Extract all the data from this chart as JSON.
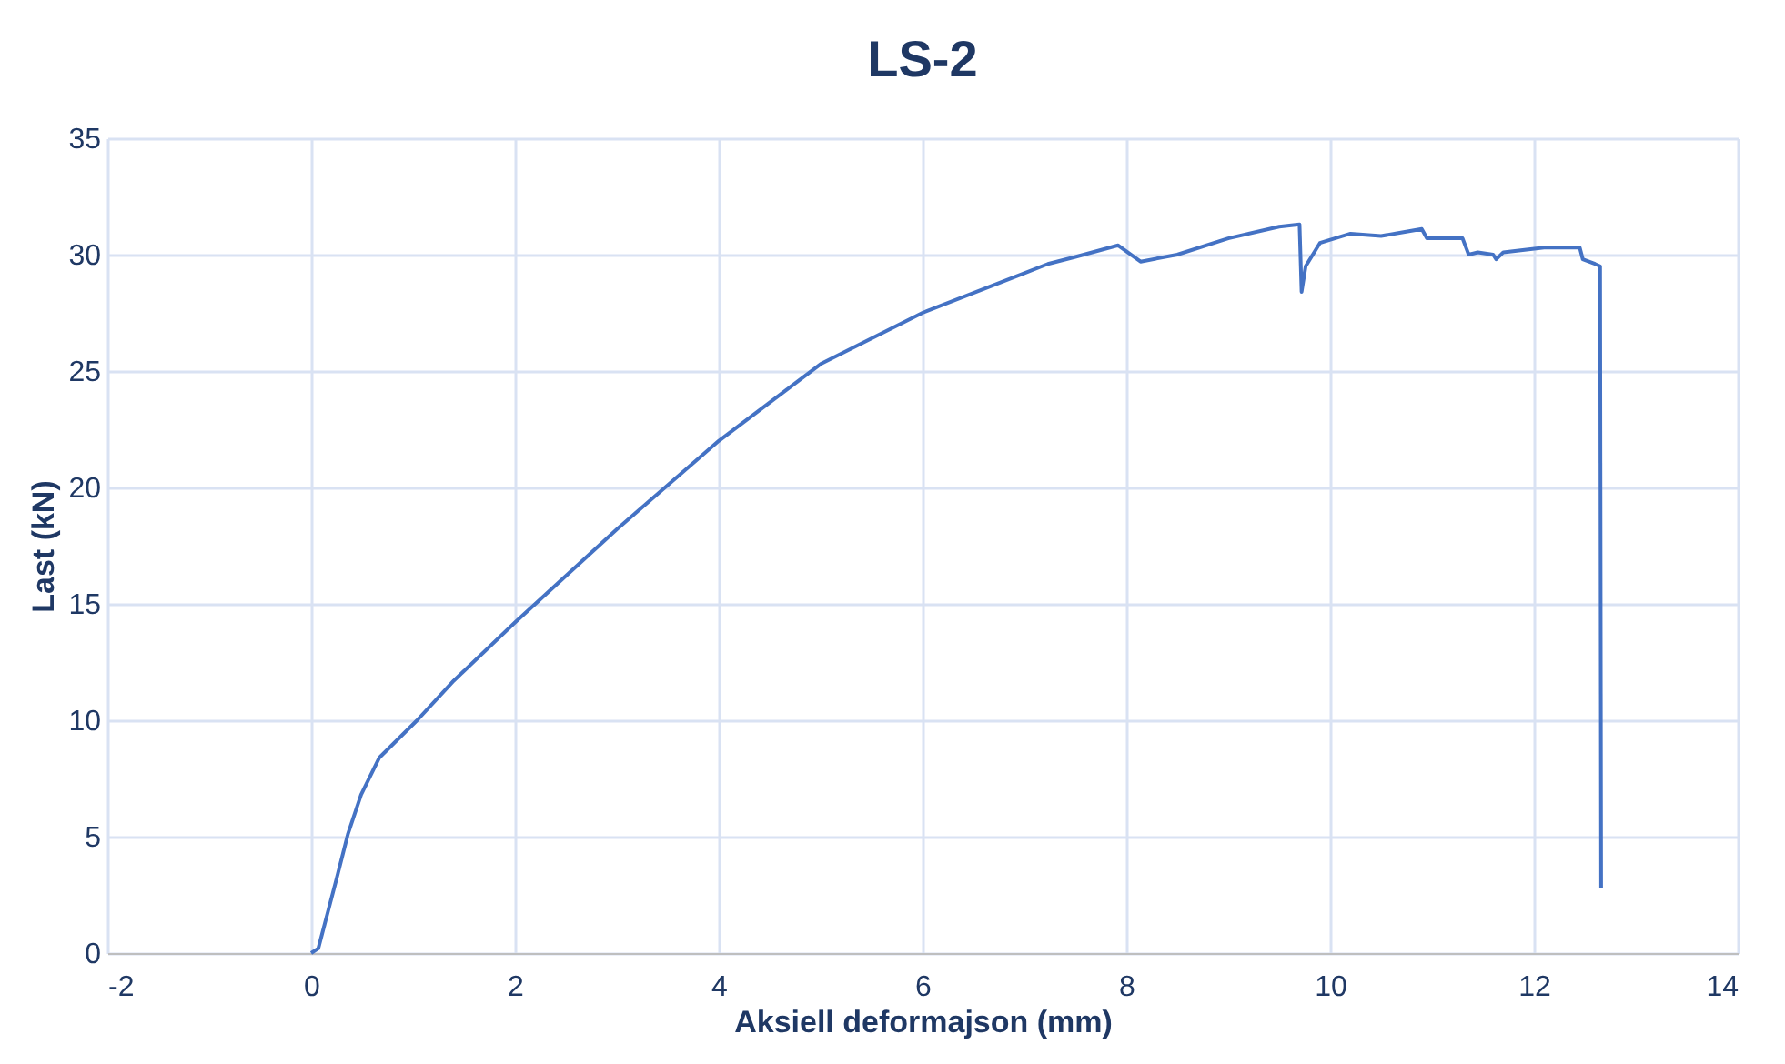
{
  "chart_data": {
    "type": "line",
    "title": "LS-2",
    "xlabel": "Aksiell deformajson (mm)",
    "ylabel": "Last (kN)",
    "xlim": [
      -2,
      14
    ],
    "xticks": [
      -2,
      0,
      2,
      4,
      6,
      8,
      10,
      12,
      14
    ],
    "ylim": [
      0,
      35
    ],
    "yticks": [
      0,
      5,
      10,
      15,
      20,
      25,
      30,
      35
    ],
    "grid": true,
    "marker": "none",
    "line_style": "solid",
    "series": [
      {
        "color": "#4472c4",
        "x": [
          0,
          0.07,
          0.13,
          0.25,
          0.36,
          0.49,
          0.67,
          1.04,
          1.4,
          2,
          3,
          4,
          5,
          6,
          7,
          7.23,
          7.5,
          7.92,
          8.14,
          8.5,
          9,
          9.5,
          9.7,
          9.72,
          9.76,
          9.9,
          10.2,
          10.5,
          10.9,
          10.95,
          11.3,
          11.36,
          11.45,
          11.6,
          11.63,
          11.7,
          12.1,
          12.45,
          12.48,
          12.6,
          12.65,
          12.66
        ],
        "values": [
          0,
          0.2,
          1.2,
          3.2,
          5.1,
          6.8,
          8.4,
          10,
          11.7,
          14.2,
          18.2,
          22,
          25.3,
          27.5,
          29.2,
          29.6,
          29.9,
          30.4,
          29.7,
          30,
          30.7,
          31.2,
          31.3,
          28.4,
          29.5,
          30.5,
          30.9,
          30.8,
          31.1,
          30.7,
          30.7,
          30,
          30.1,
          30,
          29.8,
          30.1,
          30.3,
          30.3,
          29.8,
          29.6,
          29.5,
          2.8
        ]
      }
    ]
  }
}
